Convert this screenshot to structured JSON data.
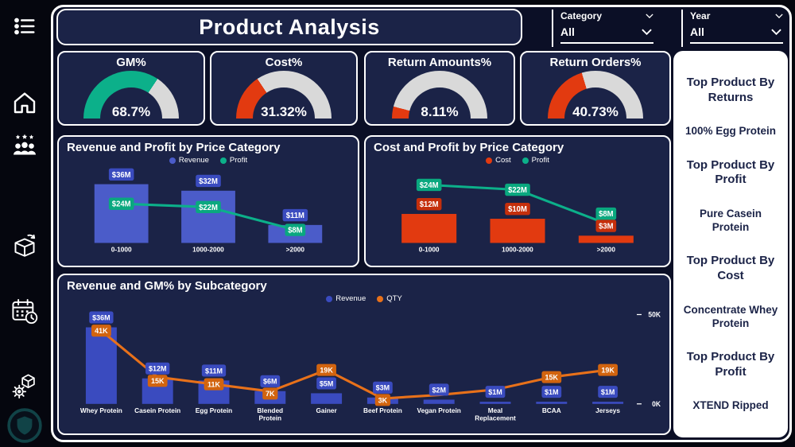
{
  "header": {
    "title": "Product Analysis"
  },
  "slicers": [
    {
      "label": "Category",
      "value": "All"
    },
    {
      "label": "Year",
      "value": "All"
    }
  ],
  "kpis": [
    {
      "title": "GM%",
      "value": "68.7%",
      "percent": 68.7,
      "color": "#0cb08a",
      "track": "#d9d9d9"
    },
    {
      "title": "Cost%",
      "value": "31.32%",
      "percent": 31.32,
      "color": "#e23a10",
      "track": "#d9d9d9"
    },
    {
      "title": "Return Amounts%",
      "value": "8.11%",
      "percent": 8.11,
      "color": "#e23a10",
      "track": "#d9d9d9"
    },
    {
      "title": "Return Orders%",
      "value": "40.73%",
      "percent": 40.73,
      "color": "#e23a10",
      "track": "#d9d9d9"
    }
  ],
  "right_panel": {
    "items": [
      {
        "heading": "Top Product By Returns",
        "value": "100% Egg Protein"
      },
      {
        "heading": "Top Product By Profit",
        "value": "Pure Casein Protein"
      },
      {
        "heading": "Top Product By Cost",
        "value": "Concentrate Whey Protein"
      },
      {
        "heading": "Top Product By Profit",
        "value": "XTEND Ripped"
      }
    ]
  },
  "chart_data": [
    {
      "type": "bar",
      "title": "Revenue and Profit by Price Category",
      "categories": [
        "0-1000",
        "1000-2000",
        ">2000"
      ],
      "series": [
        {
          "name": "Revenue",
          "type": "bar",
          "color": "#4b5cc9",
          "label_bg": "#3a4bbf",
          "values": [
            36,
            32,
            11
          ],
          "labels": [
            "$36M",
            "$32M",
            "$11M"
          ]
        },
        {
          "name": "Profit",
          "type": "line",
          "color": "#0cb08a",
          "label_bg": "#0aa87f",
          "values": [
            24,
            22,
            8
          ],
          "labels": [
            "$24M",
            "$22M",
            "$8M"
          ]
        }
      ],
      "bar_max": 40,
      "bar_ratio": 0.62,
      "label_fs": 9.5,
      "m": [
        16,
        14,
        16,
        22
      ],
      "legend_position": "top",
      "grid": false,
      "units": "M USD"
    },
    {
      "type": "bar",
      "title": "Cost and Profit by Price Category",
      "categories": [
        "0-1000",
        "1000-2000",
        ">2000"
      ],
      "series": [
        {
          "name": "Cost",
          "type": "bar",
          "color": "#e23a10",
          "label_bg": "#c52f0c",
          "values": [
            12,
            10,
            3
          ],
          "labels": [
            "$12M",
            "$10M",
            "$3M"
          ]
        },
        {
          "name": "Profit",
          "type": "line",
          "color": "#0cb08a",
          "label_bg": "#0aa87f",
          "values": [
            24,
            22,
            8
          ],
          "labels": [
            "$24M",
            "$22M",
            "$8M"
          ]
        }
      ],
      "bar_max": 27,
      "bar_ratio": 0.62,
      "label_fs": 9.5,
      "m": [
        16,
        14,
        16,
        22
      ],
      "legend_position": "top",
      "grid": false,
      "units": "M USD"
    },
    {
      "type": "bar",
      "title": "Revenue and GM% by Subcategory",
      "categories": [
        "Whey Protein",
        "Casein Protein",
        "Egg Protein",
        "Blended Protein",
        "Gainer",
        "Beef Protein",
        "Vegan Protein",
        "Meal Replacement",
        "BCAA",
        "Jerseys"
      ],
      "series": [
        {
          "name": "Revenue",
          "type": "bar",
          "color": "#3a4bbf",
          "label_bg": "#3a4bbf",
          "values": [
            36,
            12,
            11,
            6,
            5,
            3,
            2,
            1,
            1,
            1
          ],
          "labels": [
            "$36M",
            "$12M",
            "$11M",
            "$6M",
            "$5M",
            "$3M",
            "$2M",
            "$1M",
            "$1M",
            "$1M"
          ]
        },
        {
          "name": "QTY",
          "type": "line",
          "color": "#e8711a",
          "label_bg": "#d2640f",
          "values": [
            41,
            15,
            11,
            7,
            19,
            3,
            5,
            8,
            15,
            19
          ],
          "labels": [
            "41K",
            "15K",
            "11K",
            "7K",
            "19K",
            "3K",
            "",
            "",
            "15K",
            "19K"
          ]
        }
      ],
      "bar_max": 42,
      "line_max": 50,
      "bar_ratio": 0.55,
      "label_fs": 9,
      "m": [
        10,
        12,
        34,
        30
      ],
      "right_axis": {
        "labels": [
          "50K",
          "0K"
        ],
        "min": 0,
        "max": 50
      },
      "legend_position": "top",
      "grid": false,
      "units": "M USD / K units"
    }
  ]
}
